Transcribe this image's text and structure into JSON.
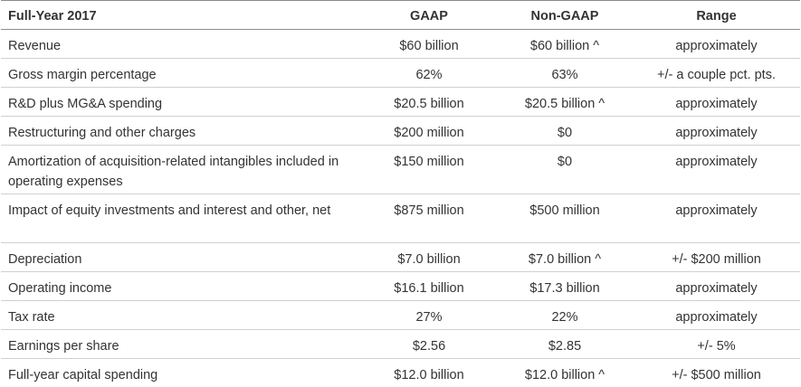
{
  "header": {
    "label": "Full-Year 2017",
    "gaap": "GAAP",
    "non_gaap": "Non-GAAP",
    "range": "Range"
  },
  "rows": [
    {
      "label": "Revenue",
      "gaap": "$60 billion",
      "non_gaap": "$60 billion ^",
      "range": "approximately"
    },
    {
      "label": "Gross margin percentage",
      "gaap": "62%",
      "non_gaap": "63%",
      "range": "+/- a couple pct. pts."
    },
    {
      "label": "R&D plus MG&A spending",
      "gaap": "$20.5 billion",
      "non_gaap": "$20.5 billion ^",
      "range": "approximately"
    },
    {
      "label": "Restructuring and other charges",
      "gaap": "$200 million",
      "non_gaap": "$0",
      "range": "approximately"
    },
    {
      "label": "Amortization of acquisition-related intangibles included in operating expenses",
      "gaap": "$150 million",
      "non_gaap": "$0",
      "range": "approximately"
    },
    {
      "label": "Impact of equity investments and interest and other, net",
      "gaap": "$875 million",
      "non_gaap": "$500 million",
      "range": "approximately"
    },
    {
      "label": "Depreciation",
      "gaap": "$7.0 billion",
      "non_gaap": "$7.0 billion ^",
      "range": "+/- $200 million"
    },
    {
      "label": "Operating income",
      "gaap": "$16.1 billion",
      "non_gaap": "$17.3 billion",
      "range": "approximately"
    },
    {
      "label": "Tax rate",
      "gaap": "27%",
      "non_gaap": "22%",
      "range": "approximately"
    },
    {
      "label": "Earnings per share",
      "gaap": "$2.56",
      "non_gaap": "$2.85",
      "range": "+/- 5%"
    },
    {
      "label": "Full-year capital spending",
      "gaap": "$12.0 billion",
      "non_gaap": "$12.0 billion ^",
      "range": "+/- $500 million"
    }
  ]
}
